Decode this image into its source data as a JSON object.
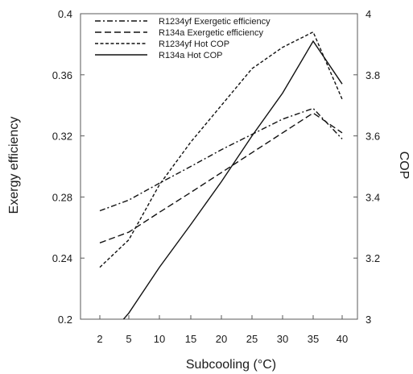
{
  "chart_data": {
    "type": "line",
    "title": "",
    "xlabel": "Subcooling (°C)",
    "ylabel_left": "Exergy efficiency",
    "ylabel_right": "COP",
    "x_ticks": [
      "2",
      "5",
      "10",
      "15",
      "20",
      "25",
      "30",
      "35",
      "40"
    ],
    "ylim_left": [
      0.2,
      0.4
    ],
    "yticks_left": [
      "0.2",
      "0.24",
      "0.28",
      "0.32",
      "0.36",
      "0.4"
    ],
    "ylim_right": [
      3,
      4
    ],
    "yticks_right": [
      "3",
      "3.2",
      "3.4",
      "3.6",
      "3.8",
      "4"
    ],
    "grid": false,
    "legend_position": "top-left",
    "series": [
      {
        "name": "R1234yf Exergetic efficiency",
        "axis": "left",
        "dash": "dashdot",
        "points": [
          [
            2,
            0.271
          ],
          [
            5,
            0.278
          ],
          [
            10,
            0.289
          ],
          [
            15,
            0.3
          ],
          [
            20,
            0.311
          ],
          [
            25,
            0.321
          ],
          [
            30,
            0.331
          ],
          [
            35,
            0.338
          ],
          [
            40,
            0.318
          ]
        ]
      },
      {
        "name": "R134a Exergetic efficiency",
        "axis": "left",
        "dash": "longdash",
        "points": [
          [
            2,
            0.25
          ],
          [
            5,
            0.257
          ],
          [
            10,
            0.27
          ],
          [
            15,
            0.283
          ],
          [
            20,
            0.296
          ],
          [
            25,
            0.309
          ],
          [
            30,
            0.322
          ],
          [
            35,
            0.335
          ],
          [
            40,
            0.322
          ]
        ]
      },
      {
        "name": "R1234yf Hot COP",
        "axis": "right",
        "dash": "shortdash",
        "points": [
          [
            2,
            3.17
          ],
          [
            5,
            3.26
          ],
          [
            10,
            3.44
          ],
          [
            15,
            3.58
          ],
          [
            20,
            3.7
          ],
          [
            25,
            3.82
          ],
          [
            30,
            3.89
          ],
          [
            35,
            3.94
          ],
          [
            40,
            3.72
          ]
        ]
      },
      {
        "name": "R134a Hot COP",
        "axis": "right",
        "dash": "solid",
        "points": [
          [
            2,
            2.91
          ],
          [
            5,
            3.02
          ],
          [
            10,
            3.17
          ],
          [
            15,
            3.31
          ],
          [
            20,
            3.45
          ],
          [
            25,
            3.6
          ],
          [
            30,
            3.74
          ],
          [
            35,
            3.91
          ],
          [
            40,
            3.77
          ]
        ]
      }
    ]
  }
}
